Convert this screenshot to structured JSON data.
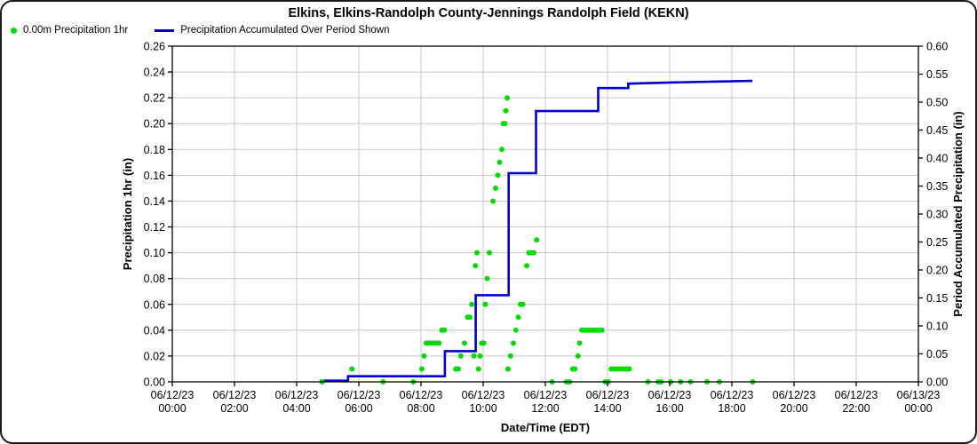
{
  "header": {
    "title": "Elkins, Elkins-Randolph County-Jennings Randolph Field (KEKN)"
  },
  "legend": {
    "items": [
      {
        "label": "0.00m Precipitation 1hr",
        "marker": "dot",
        "color": "#00dd00"
      },
      {
        "label": "Precipitation Accumulated Over Period Shown",
        "marker": "line",
        "color": "#0000cc"
      }
    ]
  },
  "chart_data": {
    "type": "combo scatter + step line",
    "title": "Elkins, Elkins-Randolph County-Jennings Randolph Field (KEKN)",
    "xlabel": "Date/Time (EDT)",
    "ylabel_left": "Precipitation 1hr (in)",
    "ylabel_right": "Period Accumulated Precipitation (in)",
    "grid": true,
    "x_axis": {
      "start_hour": 0,
      "end_hour": 24,
      "tick_interval_hours": 2,
      "tick_labels": [
        [
          "06/12/23",
          "00:00"
        ],
        [
          "06/12/23",
          "02:00"
        ],
        [
          "06/12/23",
          "04:00"
        ],
        [
          "06/12/23",
          "06:00"
        ],
        [
          "06/12/23",
          "08:00"
        ],
        [
          "06/12/23",
          "10:00"
        ],
        [
          "06/12/23",
          "12:00"
        ],
        [
          "06/12/23",
          "14:00"
        ],
        [
          "06/12/23",
          "16:00"
        ],
        [
          "06/12/23",
          "18:00"
        ],
        [
          "06/12/23",
          "20:00"
        ],
        [
          "06/12/23",
          "22:00"
        ],
        [
          "06/13/23",
          "00:00"
        ]
      ]
    },
    "y_left": {
      "min": 0.0,
      "max": 0.26,
      "tick_step": 0.02,
      "tick_labels": [
        "0.00",
        "0.02",
        "0.04",
        "0.06",
        "0.08",
        "0.10",
        "0.12",
        "0.14",
        "0.16",
        "0.18",
        "0.20",
        "0.22",
        "0.24",
        "0.26"
      ]
    },
    "y_right": {
      "min": 0.0,
      "max": 0.6,
      "tick_step": 0.05,
      "tick_labels": [
        "0.00",
        "0.05",
        "0.10",
        "0.15",
        "0.20",
        "0.25",
        "0.30",
        "0.35",
        "0.40",
        "0.45",
        "0.50",
        "0.55",
        "0.60"
      ]
    },
    "series": [
      {
        "name": "0.00m Precipitation 1hr",
        "type": "scatter",
        "axis": "left",
        "color": "#00dd00",
        "points_hour_value": [
          [
            4.82,
            0.0
          ],
          [
            5.78,
            0.01
          ],
          [
            6.78,
            0.0
          ],
          [
            7.75,
            0.0
          ],
          [
            8.03,
            0.01
          ],
          [
            8.1,
            0.02
          ],
          [
            8.17,
            0.03
          ],
          [
            8.25,
            0.03
          ],
          [
            8.33,
            0.03
          ],
          [
            8.42,
            0.03
          ],
          [
            8.5,
            0.03
          ],
          [
            8.58,
            0.03
          ],
          [
            8.67,
            0.04
          ],
          [
            8.75,
            0.04
          ],
          [
            9.12,
            0.01
          ],
          [
            9.2,
            0.01
          ],
          [
            9.28,
            0.02
          ],
          [
            9.4,
            0.03
          ],
          [
            9.5,
            0.05
          ],
          [
            9.57,
            0.05
          ],
          [
            9.63,
            0.06
          ],
          [
            9.7,
            0.02
          ],
          [
            9.75,
            0.09
          ],
          [
            9.8,
            0.1
          ],
          [
            9.85,
            0.01
          ],
          [
            9.9,
            0.02
          ],
          [
            9.95,
            0.03
          ],
          [
            10.02,
            0.03
          ],
          [
            10.07,
            0.06
          ],
          [
            10.13,
            0.08
          ],
          [
            10.2,
            0.1
          ],
          [
            10.32,
            0.14
          ],
          [
            10.4,
            0.15
          ],
          [
            10.47,
            0.16
          ],
          [
            10.53,
            0.17
          ],
          [
            10.6,
            0.18
          ],
          [
            10.65,
            0.2
          ],
          [
            10.7,
            0.2
          ],
          [
            10.73,
            0.21
          ],
          [
            10.77,
            0.22
          ],
          [
            10.8,
            0.01
          ],
          [
            10.88,
            0.02
          ],
          [
            10.97,
            0.03
          ],
          [
            11.05,
            0.04
          ],
          [
            11.13,
            0.05
          ],
          [
            11.2,
            0.06
          ],
          [
            11.27,
            0.06
          ],
          [
            11.4,
            0.09
          ],
          [
            11.47,
            0.1
          ],
          [
            11.55,
            0.1
          ],
          [
            11.63,
            0.1
          ],
          [
            11.72,
            0.11
          ],
          [
            12.22,
            0.0
          ],
          [
            12.68,
            0.0
          ],
          [
            12.78,
            0.0
          ],
          [
            12.88,
            0.01
          ],
          [
            12.95,
            0.01
          ],
          [
            13.05,
            0.02
          ],
          [
            13.1,
            0.03
          ],
          [
            13.17,
            0.04
          ],
          [
            13.25,
            0.04
          ],
          [
            13.33,
            0.04
          ],
          [
            13.42,
            0.04
          ],
          [
            13.5,
            0.04
          ],
          [
            13.58,
            0.04
          ],
          [
            13.67,
            0.04
          ],
          [
            13.75,
            0.04
          ],
          [
            13.82,
            0.04
          ],
          [
            13.93,
            0.0
          ],
          [
            14.02,
            0.0
          ],
          [
            14.12,
            0.01
          ],
          [
            14.2,
            0.01
          ],
          [
            14.28,
            0.01
          ],
          [
            14.37,
            0.01
          ],
          [
            14.45,
            0.01
          ],
          [
            14.53,
            0.01
          ],
          [
            14.62,
            0.01
          ],
          [
            14.7,
            0.01
          ],
          [
            15.3,
            0.0
          ],
          [
            15.63,
            0.0
          ],
          [
            15.72,
            0.0
          ],
          [
            16.03,
            0.0
          ],
          [
            16.35,
            0.0
          ],
          [
            16.67,
            0.0
          ],
          [
            17.2,
            0.0
          ],
          [
            17.6,
            0.0
          ],
          [
            18.67,
            0.0
          ]
        ]
      },
      {
        "name": "Precipitation Accumulated Over Period Shown",
        "type": "step-line",
        "axis": "right",
        "color": "#0000cc",
        "vertices_hour_value": [
          [
            4.75,
            0.002
          ],
          [
            5.65,
            0.002
          ],
          [
            5.65,
            0.01
          ],
          [
            8.77,
            0.01
          ],
          [
            8.77,
            0.055
          ],
          [
            9.76,
            0.055
          ],
          [
            9.76,
            0.155
          ],
          [
            10.82,
            0.155
          ],
          [
            10.82,
            0.373
          ],
          [
            11.7,
            0.373
          ],
          [
            11.7,
            0.484
          ],
          [
            13.7,
            0.484
          ],
          [
            13.7,
            0.525
          ],
          [
            14.67,
            0.525
          ],
          [
            14.67,
            0.533
          ],
          [
            16.0,
            0.535
          ],
          [
            18.66,
            0.538
          ]
        ]
      }
    ]
  },
  "colors": {
    "background": "#ffffff",
    "frame_border": "#1a1a1a",
    "grid": "#c8c8c8",
    "axis": "#000000",
    "scatter_green": "#00dd00",
    "line_blue": "#0000cc"
  }
}
